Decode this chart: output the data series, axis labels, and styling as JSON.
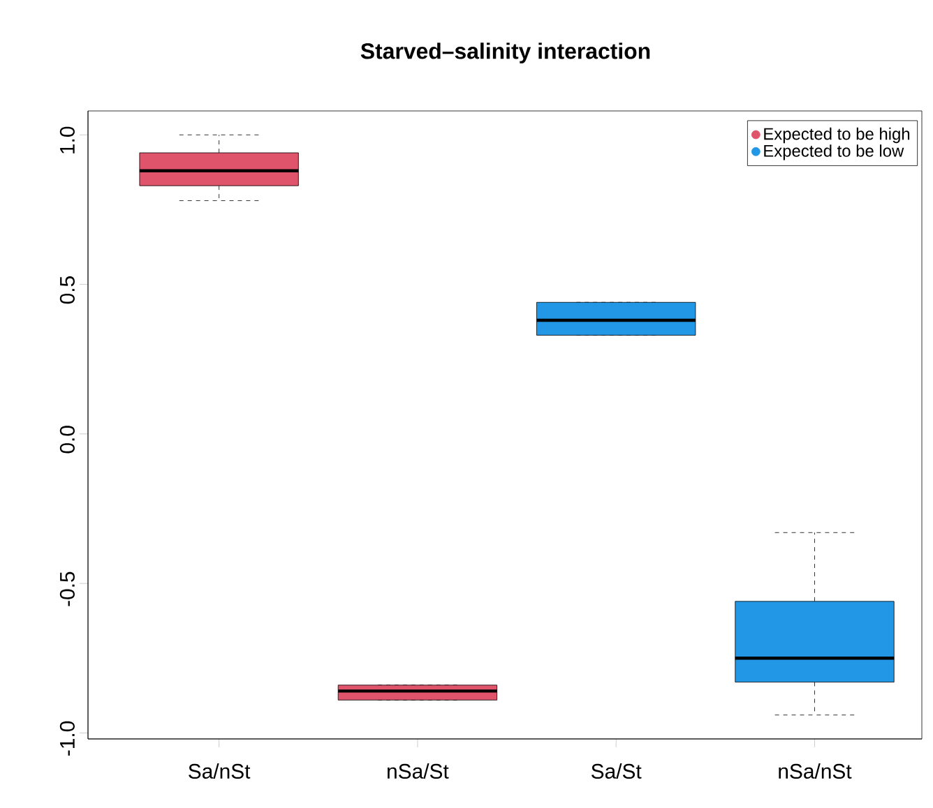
{
  "chart_data": {
    "type": "box",
    "title": "Starved–salinity interaction",
    "categories": [
      "Sa/nSt",
      "nSa/St",
      "Sa/St",
      "nSa/nSt"
    ],
    "series": [
      {
        "name": "Expected to be high",
        "color": "#df536b",
        "boxes": [
          {
            "low": 0.78,
            "q1": 0.83,
            "median": 0.88,
            "q3": 0.94,
            "high": 1.0
          },
          {
            "low": -0.89,
            "q1": -0.89,
            "median": -0.86,
            "q3": -0.84,
            "high": -0.84
          },
          null,
          null
        ]
      },
      {
        "name": "Expected to be low",
        "color": "#2297e6",
        "boxes": [
          null,
          null,
          {
            "low": 0.33,
            "q1": 0.33,
            "median": 0.38,
            "q3": 0.44,
            "high": 0.44
          },
          {
            "low": -0.94,
            "q1": -0.83,
            "median": -0.75,
            "q3": -0.56,
            "high": -0.33
          }
        ]
      }
    ],
    "ylim": [
      -1.02,
      1.08
    ],
    "yticks": [
      {
        "value": -1,
        "label": "-1.0"
      },
      {
        "value": -0.5,
        "label": "-0.5"
      },
      {
        "value": 0,
        "label": "0.0"
      },
      0.5,
      {
        "value": 1,
        "label": "1.0"
      }
    ],
    "legend": "top right",
    "marker": "circle",
    "line_style": "dashed"
  }
}
